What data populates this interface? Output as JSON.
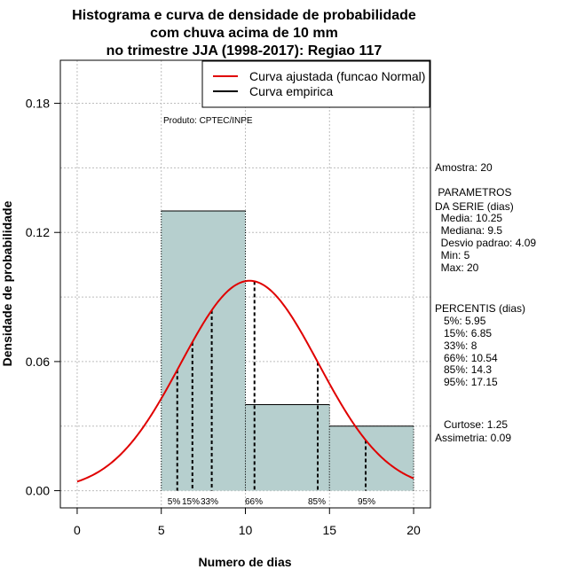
{
  "chart_data": {
    "type": "bar",
    "title_lines": [
      "Histograma e curva de densidade de probabilidade",
      "com chuva acima de 10 mm",
      "no trimestre JJA (1998-2017): Regiao 117"
    ],
    "xlabel": "Numero de dias",
    "ylabel": "Densidade de probabilidade",
    "xlim": [
      -1,
      21
    ],
    "ylim": [
      -0.008,
      0.2
    ],
    "x_ticks": [
      0,
      5,
      10,
      15,
      20
    ],
    "y_ticks": [
      0.0,
      0.06,
      0.12,
      0.18
    ],
    "y_tick_labels": [
      "0.00",
      "0.06",
      "0.12",
      "0.18"
    ],
    "grid": true,
    "bins": [
      {
        "start": 5,
        "end": 10,
        "density": 0.13
      },
      {
        "start": 10,
        "end": 15,
        "density": 0.04
      },
      {
        "start": 15,
        "end": 20,
        "density": 0.03
      }
    ],
    "fitted_curve": {
      "name": "Curva ajustada (funcao Normal)",
      "mean": 10.25,
      "sd": 4.09,
      "x_range": [
        0,
        20
      ],
      "color": "#e00000"
    },
    "empirical_curve": {
      "name": "Curva empirica",
      "color": "#000000"
    },
    "percentiles": [
      {
        "label": "5%",
        "value": 5.95
      },
      {
        "label": "15%",
        "value": 6.85
      },
      {
        "label": "33%",
        "value": 8
      },
      {
        "label": "66%",
        "value": 10.54
      },
      {
        "label": "85%",
        "value": 14.3
      },
      {
        "label": "95%",
        "value": 17.15
      }
    ],
    "legend_position": "top-right",
    "annotation": "Produto: CPTEC/INPE"
  },
  "side_panel": {
    "lines": [
      "Amostra: 20",
      " PARAMETROS",
      "DA SERIE (dias)",
      "  Media: 10.25",
      "  Mediana: 9.5",
      "  Desvio padrao: 4.09",
      "  Min: 5",
      "  Max: 20",
      "PERCENTIS (dias)",
      "   5%: 5.95",
      "   15%: 6.85",
      "   33%: 8",
      "   66%: 10.54",
      "   85%: 14.3",
      "   95%: 17.15",
      "   Curtose: 1.25",
      "Assimetria: 0.09"
    ]
  },
  "colors": {
    "bar_fill": "#b6cfce",
    "grid": "#bdbdbd"
  }
}
